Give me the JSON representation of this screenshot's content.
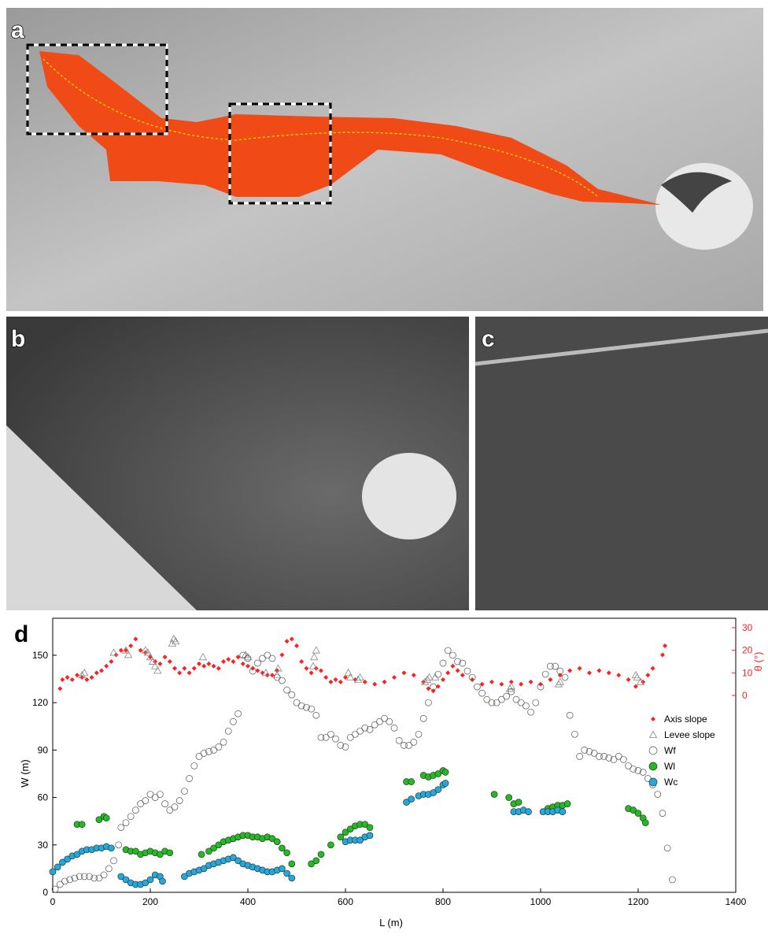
{
  "chart_data": {
    "type": "scatter",
    "panel_labels": [
      "a",
      "b",
      "c",
      "d"
    ],
    "xlabel": "L (m)",
    "ylabel": "W (m)",
    "y2label": "θ (°)",
    "xlim": [
      0,
      1400
    ],
    "xticks": [
      0,
      200,
      400,
      600,
      800,
      1000,
      1200,
      1400
    ],
    "ylim": [
      0,
      173.4
    ],
    "yticks": [
      0,
      30,
      60,
      90,
      120,
      150
    ],
    "y2lim": [
      -87.2,
      34.2
    ],
    "y2ticks": [
      0,
      10,
      20,
      30
    ],
    "y2color": "#ff2020",
    "legend": "upper right",
    "series": [
      {
        "name": "Axis slope",
        "color": "#ff2020",
        "marker": "diamond",
        "filled": true,
        "axis": "y2",
        "x": [
          15,
          20,
          30,
          40,
          50,
          60,
          70,
          80,
          90,
          100,
          110,
          120,
          130,
          140,
          150,
          160,
          170,
          180,
          190,
          200,
          210,
          220,
          230,
          240,
          250,
          260,
          270,
          280,
          290,
          300,
          310,
          320,
          330,
          340,
          350,
          360,
          370,
          380,
          390,
          400,
          410,
          420,
          430,
          440,
          450,
          460,
          470,
          480,
          490,
          500,
          510,
          520,
          530,
          540,
          550,
          560,
          570,
          580,
          590,
          600,
          620,
          640,
          660,
          680,
          700,
          720,
          740,
          760,
          770,
          780,
          790,
          800,
          810,
          820,
          830,
          840,
          860,
          880,
          900,
          920,
          940,
          960,
          980,
          1000,
          1020,
          1040,
          1060,
          1080,
          1100,
          1120,
          1140,
          1160,
          1180,
          1195,
          1210,
          1220,
          1230,
          1250,
          1255
        ],
        "values": [
          3,
          7,
          8,
          7,
          9,
          8,
          7,
          8,
          10,
          11,
          13,
          15,
          18,
          20,
          20,
          22,
          25,
          20,
          19,
          17,
          15,
          14,
          17,
          15,
          12,
          10,
          12,
          10,
          12,
          14,
          13,
          14,
          13,
          12,
          15,
          16,
          15,
          17,
          14,
          13,
          12,
          11,
          10,
          9,
          9,
          11,
          18,
          24,
          25,
          22,
          15,
          12,
          10,
          12,
          11,
          8,
          6,
          7,
          6,
          8,
          7,
          6,
          5,
          6,
          8,
          10,
          9,
          6,
          3,
          2,
          4,
          7,
          10,
          13,
          11,
          9,
          7,
          5,
          6,
          5,
          6,
          5,
          6,
          5,
          7,
          9,
          11,
          12,
          10,
          11,
          10,
          9,
          7,
          4,
          6,
          9,
          12,
          18,
          22
        ]
      },
      {
        "name": "Levee slope",
        "color": "#888888",
        "marker": "triangle",
        "filled": false,
        "axis": "y2",
        "x": [
          60,
          65,
          125,
          150,
          155,
          190,
          195,
          200,
          205,
          210,
          215,
          245,
          248,
          252,
          308,
          395,
          400,
          437,
          460,
          462,
          534,
          536,
          540,
          606,
          610,
          626,
          630,
          763,
          768,
          772,
          784,
          937,
          940,
          1037,
          1040,
          1195,
          1198,
          1205
        ],
        "values": [
          9,
          10,
          19,
          20,
          18,
          20,
          19,
          17,
          15,
          13,
          11,
          23,
          25,
          24,
          17,
          18,
          17,
          10,
          9,
          12,
          13,
          17,
          20,
          10,
          8,
          7,
          8,
          6,
          7,
          8,
          8,
          3,
          4,
          5,
          6,
          9,
          8,
          6
        ]
      },
      {
        "name": "Wf",
        "color": "#555555",
        "marker": "circle",
        "filled": false,
        "x": [
          5,
          15,
          25,
          35,
          45,
          55,
          65,
          75,
          85,
          95,
          105,
          115,
          125,
          135,
          140,
          150,
          160,
          170,
          180,
          190,
          200,
          210,
          220,
          230,
          240,
          250,
          260,
          270,
          280,
          290,
          300,
          310,
          320,
          330,
          340,
          350,
          360,
          370,
          380,
          390,
          400,
          410,
          420,
          430,
          440,
          450,
          460,
          470,
          480,
          490,
          500,
          510,
          520,
          530,
          540,
          550,
          560,
          570,
          580,
          590,
          600,
          610,
          620,
          630,
          640,
          650,
          660,
          670,
          680,
          690,
          700,
          710,
          720,
          730,
          740,
          750,
          760,
          770,
          780,
          790,
          800,
          810,
          820,
          830,
          840,
          850,
          860,
          870,
          880,
          890,
          900,
          910,
          920,
          930,
          940,
          950,
          960,
          970,
          980,
          990,
          1000,
          1010,
          1020,
          1030,
          1040,
          1050,
          1060,
          1070,
          1080,
          1090,
          1100,
          1110,
          1120,
          1130,
          1140,
          1150,
          1160,
          1170,
          1180,
          1190,
          1200,
          1210,
          1220,
          1230,
          1240,
          1250,
          1260,
          1270
        ],
        "values": [
          2,
          5,
          7,
          8,
          9,
          10,
          10,
          10,
          9,
          9,
          11,
          15,
          20,
          30,
          41,
          44,
          48,
          52,
          56,
          58,
          62,
          60,
          62,
          56,
          52,
          54,
          58,
          64,
          72,
          80,
          86,
          88,
          89,
          90,
          92,
          95,
          102,
          108,
          113,
          150,
          148,
          140,
          145,
          148,
          150,
          148,
          136,
          134,
          128,
          125,
          120,
          118,
          117,
          116,
          112,
          98,
          98,
          100,
          97,
          93,
          92,
          98,
          100,
          102,
          104,
          103,
          106,
          108,
          110,
          108,
          104,
          96,
          93,
          93,
          95,
          100,
          110,
          120,
          130,
          138,
          145,
          153,
          150,
          146,
          145,
          140,
          136,
          130,
          126,
          122,
          120,
          120,
          122,
          124,
          127,
          122,
          120,
          118,
          114,
          120,
          130,
          138,
          143,
          143,
          140,
          136,
          112,
          100,
          86,
          90,
          89,
          88,
          86,
          86,
          85,
          84,
          86,
          84,
          80,
          78,
          77,
          76,
          72,
          68,
          62,
          50,
          28,
          8
        ]
      },
      {
        "name": "Wl",
        "color": "#22bb22",
        "marker": "circle",
        "filled": true,
        "x": [
          50,
          60,
          95,
          105,
          110,
          150,
          160,
          170,
          180,
          190,
          200,
          210,
          220,
          230,
          240,
          305,
          320,
          330,
          340,
          350,
          360,
          370,
          380,
          390,
          400,
          410,
          420,
          430,
          440,
          450,
          460,
          470,
          480,
          490,
          530,
          540,
          550,
          570,
          590,
          600,
          610,
          620,
          630,
          640,
          650,
          725,
          735,
          760,
          770,
          780,
          790,
          800,
          805,
          905,
          935,
          945,
          955,
          1015,
          1025,
          1035,
          1045,
          1055,
          1180,
          1190,
          1200,
          1210,
          1215
        ],
        "values": [
          43,
          43,
          46,
          48,
          47,
          27,
          26,
          26,
          24,
          25,
          26,
          25,
          24,
          26,
          25,
          24,
          26,
          28,
          30,
          32,
          33,
          34,
          35,
          36,
          36,
          35,
          35,
          34,
          35,
          34,
          32,
          28,
          25,
          18,
          18,
          20,
          24,
          30,
          35,
          38,
          40,
          42,
          43,
          43,
          41,
          70,
          70,
          74,
          73,
          74,
          75,
          77,
          76,
          62,
          60,
          56,
          57,
          53,
          54,
          55,
          55,
          56,
          53,
          52,
          50,
          47,
          44
        ]
      },
      {
        "name": "Wc",
        "color": "#22aadd",
        "marker": "circle",
        "filled": true,
        "x": [
          0,
          10,
          20,
          30,
          40,
          50,
          60,
          70,
          80,
          90,
          100,
          110,
          120,
          140,
          150,
          160,
          170,
          180,
          190,
          200,
          210,
          220,
          225,
          270,
          280,
          290,
          300,
          310,
          320,
          330,
          340,
          350,
          360,
          370,
          380,
          390,
          400,
          410,
          420,
          430,
          440,
          450,
          460,
          470,
          480,
          490,
          600,
          610,
          620,
          630,
          640,
          650,
          725,
          735,
          750,
          760,
          770,
          780,
          790,
          800,
          805,
          945,
          955,
          965,
          975,
          1005,
          1015,
          1025,
          1035,
          1045
        ],
        "values": [
          13,
          16,
          19,
          21,
          23,
          24,
          26,
          27,
          27,
          28,
          28,
          29,
          28,
          10,
          8,
          6,
          5,
          5,
          6,
          8,
          11,
          10,
          7,
          10,
          12,
          13,
          14,
          15,
          17,
          18,
          19,
          20,
          21,
          22,
          20,
          18,
          17,
          16,
          15,
          14,
          13,
          13,
          14,
          15,
          12,
          9,
          32,
          33,
          33,
          33,
          35,
          36,
          57,
          59,
          61,
          62,
          62,
          63,
          65,
          68,
          69,
          51,
          51,
          52,
          51,
          51,
          51,
          51,
          52,
          51
        ]
      }
    ]
  }
}
